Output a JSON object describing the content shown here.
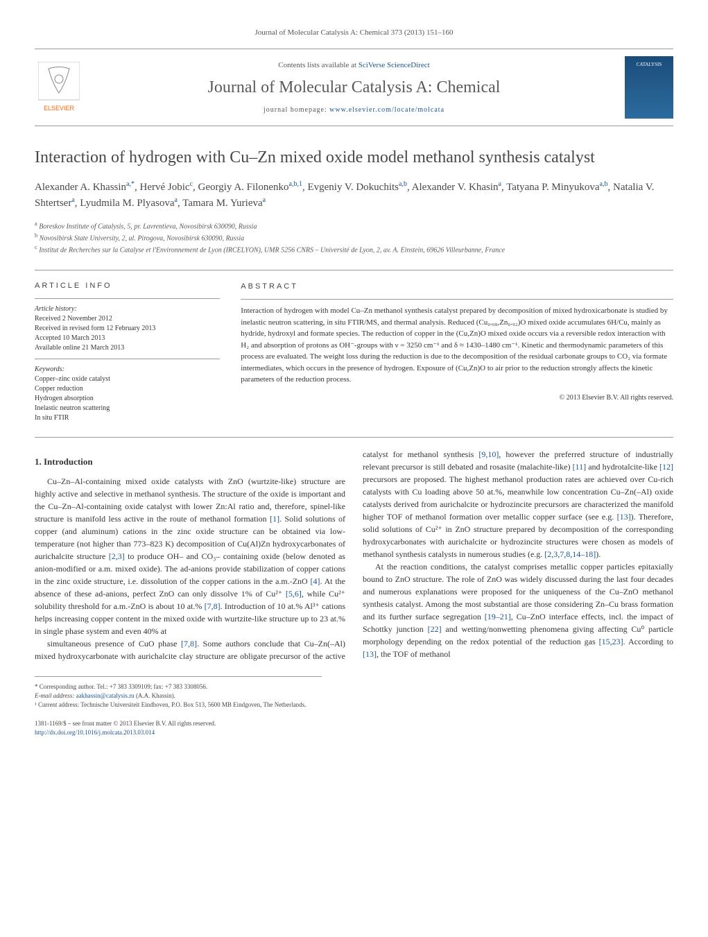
{
  "header": {
    "citation": "Journal of Molecular Catalysis A: Chemical 373 (2013) 151–160",
    "contents_text": "Contents lists available at ",
    "contents_link": "SciVerse ScienceDirect",
    "journal_name": "Journal of Molecular Catalysis A: Chemical",
    "homepage_label": "journal homepage: ",
    "homepage_url": "www.elsevier.com/locate/molcata",
    "publisher_logo": "ELSEVIER",
    "cover_text": "CATALYSIS"
  },
  "title": "Interaction of hydrogen with Cu–Zn mixed oxide model methanol synthesis catalyst",
  "authors": [
    {
      "name": "Alexander A. Khassin",
      "marks": "a,*"
    },
    {
      "name": "Hervé Jobic",
      "marks": "c"
    },
    {
      "name": "Georgiy A. Filonenko",
      "marks": "a,b,1"
    },
    {
      "name": "Evgeniy V. Dokuchits",
      "marks": "a,b"
    },
    {
      "name": "Alexander V. Khasin",
      "marks": "a"
    },
    {
      "name": "Tatyana P. Minyukova",
      "marks": "a,b"
    },
    {
      "name": "Natalia V. Shtertser",
      "marks": "a"
    },
    {
      "name": "Lyudmila M. Plyasova",
      "marks": "a"
    },
    {
      "name": "Tamara M. Yurieva",
      "marks": "a"
    }
  ],
  "affiliations": [
    {
      "mark": "a",
      "text": "Boreskov Institute of Catalysis, 5, pr. Lavrentieva, Novosibirsk 630090, Russia"
    },
    {
      "mark": "b",
      "text": "Novosibirsk State University, 2, ul. Pirogova, Novosibirsk 630090, Russia"
    },
    {
      "mark": "c",
      "text": "Institut de Recherches sur la Catalyse et l'Environnement de Lyon (IRCELYON), UMR 5256 CNRS – Université de Lyon, 2, av. A. Einstein, 69626 Villeurbanne, France"
    }
  ],
  "article_info": {
    "header": "ARTICLE INFO",
    "history_label": "Article history:",
    "history": [
      "Received 2 November 2012",
      "Received in revised form 12 February 2013",
      "Accepted 10 March 2013",
      "Available online 21 March 2013"
    ],
    "keywords_label": "Keywords:",
    "keywords": [
      "Copper–zinc oxide catalyst",
      "Copper reduction",
      "Hydrogen absorption",
      "Inelastic neutron scattering",
      "In situ FTIR"
    ]
  },
  "abstract": {
    "header": "ABSTRACT",
    "text": "Interaction of hydrogen with model Cu–Zn methanol synthesis catalyst prepared by decomposition of mixed hydroxicarbonate is studied by inelastic neutron scattering, in situ FTIR/MS, and thermal analysis. Reduced (Cu₀.₀₈,Zn₀.₉₂)O mixed oxide accumulates 6H/Cu, mainly as hydride, hydroxyl and formate species. The reduction of copper in the (Cu,Zn)O mixed oxide occurs via a reversible redox interaction with H₂ and absorption of protons as OH⁻-groups with ν = 3250 cm⁻¹ and δ ≈ 1430–1480 cm⁻¹. Kinetic and thermodynamic parameters of this process are evaluated. The weight loss during the reduction is due to the decomposition of the residual carbonate groups to CO₂ via formate intermediates, which occurs in the presence of hydrogen. Exposure of (Cu,Zn)O to air prior to the reduction strongly affects the kinetic parameters of the reduction process.",
    "copyright": "© 2013 Elsevier B.V. All rights reserved."
  },
  "sections": {
    "intro_title": "1. Introduction",
    "intro_p1": "Cu–Zn–Al-containing mixed oxide catalysts with ZnO (wurtzite-like) structure are highly active and selective in methanol synthesis. The structure of the oxide is important and the Cu–Zn–Al-containing oxide catalyst with lower Zn:Al ratio and, therefore, spinel-like structure is manifold less active in the route of methanol formation [1]. Solid solutions of copper (and aluminum) cations in the zinc oxide structure can be obtained via low-temperature (not higher than 773–823 K) decomposition of Cu(Al)Zn hydroxycarbonates of aurichalcite structure [2,3] to produce OH– and CO₃– containing oxide (below denoted as anion-modified or a.m. mixed oxide). The ad-anions provide stabilization of copper cations in the zinc oxide structure, i.e. dissolution of the copper cations in the a.m.-ZnO [4]. At the absence of these ad-anions, perfect ZnO can only dissolve 1% of Cu²⁺ [5,6], while Cu²⁺ solubility threshold for a.m.-ZnO is about 10 at.% [7,8]. Introduction of 10 at.% Al³⁺ cations helps increasing copper content in the mixed oxide with wurtzite-like structure up to 23 at.% in single phase system and even 40% at",
    "intro_p2": "simultaneous presence of CuO phase [7,8]. Some authors conclude that Cu–Zn(–Al) mixed hydroxycarbonate with aurichalcite clay structure are obligate precursor of the active catalyst for methanol synthesis [9,10], however the preferred structure of industrially relevant precursor is still debated and rosasite (malachite-like) [11] and hydrotalcite-like [12] precursors are proposed. The highest methanol production rates are achieved over Cu-rich catalysts with Cu loading above 50 at.%, meanwhile low concentration Cu–Zn(–Al) oxide catalysts derived from aurichalcite or hydrozincite precursors are characterized the manifold higher TOF of methanol formation over metallic copper surface (see e.g. [13]). Therefore, solid solutions of Cu²⁺ in ZnO structure prepared by decomposition of the corresponding hydroxycarbonates with aurichalcite or hydrozincite structures were chosen as models of methanol synthesis catalysts in numerous studies (e.g. [2,3,7,8,14–18]).",
    "intro_p3": "At the reaction conditions, the catalyst comprises metallic copper particles epitaxially bound to ZnO structure. The role of ZnO was widely discussed during the last four decades and numerous explanations were proposed for the uniqueness of the Cu–ZnO methanol synthesis catalyst. Among the most substantial are those considering Zn–Cu brass formation and its further surface segregation [19–21], Cu–ZnO interface effects, incl. the impact of Schottky junction [22] and wetting/nonwetting phenomena giving affecting Cu⁰ particle morphology depending on the redox potential of the reduction gas [15,23]. According to [13], the TOF of methanol"
  },
  "footnotes": {
    "corresponding": "* Corresponding author. Tel.: +7 383 3309109; fax: +7 383 3308056.",
    "email_label": "E-mail address: ",
    "email": "aakhassin@catalysis.ru",
    "email_name": " (A.A. Khassin).",
    "note1": "¹ Current address: Technische Universiteit Eindhoven, P.O. Box 513, 5600 MB Eindgoven, The Netherlands."
  },
  "bottom": {
    "issn": "1381-1169/$ – see front matter © 2013 Elsevier B.V. All rights reserved.",
    "doi": "http://dx.doi.org/10.1016/j.molcata.2013.03.014"
  },
  "colors": {
    "link": "#1a5490",
    "text": "#333333",
    "heading": "#484848",
    "border": "#999999"
  }
}
